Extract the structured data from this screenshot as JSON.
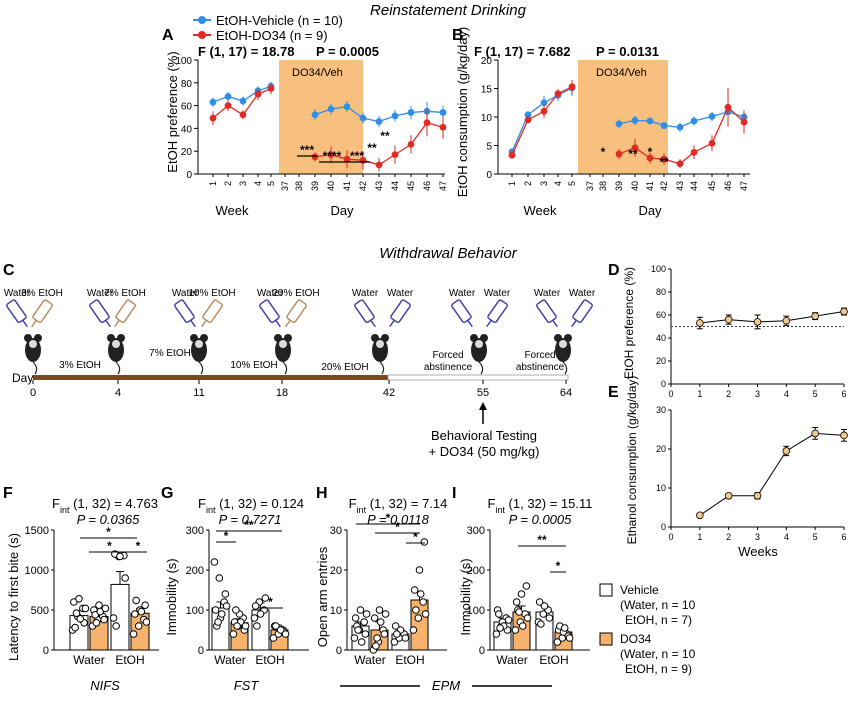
{
  "colors": {
    "vehicle": "#2f8fe8",
    "do34": "#e22a25",
    "shade": "#f8c07f",
    "brown": "#7a4a1e",
    "orange_bar": "#f7b26b",
    "pointD": "#f2c98a",
    "water_bottle": "#3a3aa8",
    "etoh_bottle": "#b8885a"
  },
  "titles": {
    "reinstatement": "Reinstatement Drinking",
    "withdrawal": "Withdrawal Behavior"
  },
  "panel_letters": {
    "a": "A",
    "b": "B",
    "c": "C",
    "d": "D",
    "e": "E",
    "f": "F",
    "g": "G",
    "h": "H",
    "i": "I"
  },
  "legend_top": {
    "vehicle": "EtOH-Vehicle (n = 10)",
    "do34": "EtOH-DO34 (n = 9)"
  },
  "panelA": {
    "stat": "F (1, 17) = 18.78",
    "p": "P = 0.0005",
    "shade_label": "DO34/Veh",
    "ylabel": "EtOH preference (%)",
    "xlabel_week": "Week",
    "xlabel_day": "Day",
    "yticks": [
      "0",
      "20",
      "40",
      "60",
      "80",
      "100"
    ],
    "sig": [
      {
        "label": "***"
      },
      {
        "label": "****"
      },
      {
        "label": "***"
      },
      {
        "label": "**"
      },
      {
        "label": "**"
      }
    ]
  },
  "panelB": {
    "stat": "F (1, 17) = 7.682",
    "p": "P = 0.0131",
    "shade_label": "DO34/Veh",
    "ylabel": "EtOH consumption (g/kg/day)",
    "xlabel_week": "Week",
    "xlabel_day": "Day",
    "yticks": [
      "0",
      "5",
      "10",
      "15",
      "20"
    ],
    "sig": [
      {
        "label": "*"
      },
      {
        "label": "**"
      },
      {
        "label": "*"
      },
      {
        "label": "**"
      }
    ]
  },
  "panelC": {
    "bottle_labels": [
      "Water",
      "3% EtOH",
      "Water",
      "7% EtOH",
      "Water",
      "10% EtOH",
      "Water",
      "20% EtOH",
      "Water",
      "Water",
      "Water",
      "Water",
      "Water",
      "Water"
    ],
    "phase_labels": [
      "3% EtOH",
      "7% EtOH",
      "10% EtOH",
      "20% EtOH",
      "Forced abstinence",
      "Forced abstinence"
    ],
    "day_label": "Day",
    "days": [
      "0",
      "4",
      "11",
      "18",
      "42",
      "55",
      "64"
    ],
    "testing": "Behavioral Testing",
    "drug": "+ DO34  (50 mg/kg)"
  },
  "panelD": {
    "ylabel": "EtOH preference (%)",
    "yticks": [
      "0",
      "20",
      "40",
      "60",
      "80",
      "100"
    ],
    "xticks": [
      "0",
      "1",
      "2",
      "3",
      "4",
      "5",
      "6"
    ]
  },
  "panelE": {
    "ylabel": "Ethanol consumption (g/kg/day)",
    "yticks": [
      "0",
      "10",
      "20",
      "30"
    ],
    "xticks": [
      "0",
      "1",
      "2",
      "3",
      "4",
      "5",
      "6"
    ],
    "xlabel": "Weeks"
  },
  "panelF": {
    "stat_main": "F",
    "stat_sub": "int",
    "stat_rest": " (1, 32) = 4.763",
    "p": "P = 0.0365",
    "ylabel": "Latency to first bite (s)",
    "yticks": [
      "0",
      "500",
      "1000",
      "1500"
    ],
    "groups": [
      "Water",
      "EtOH"
    ],
    "bottom": "NIFS"
  },
  "panelG": {
    "stat_main": "F",
    "stat_sub": "int",
    "stat_rest": " (1, 32) = 0.124",
    "p": "P = 0.7271",
    "ylabel": "Immobility (s)",
    "yticks": [
      "0",
      "100",
      "200",
      "300"
    ],
    "groups": [
      "Water",
      "EtOH"
    ],
    "bottom": "FST"
  },
  "panelH": {
    "stat_main": "F",
    "stat_sub": "int",
    "stat_rest": " (1, 32) = 7.14",
    "p": "P = 0.0118",
    "ylabel": "Open arm entries",
    "yticks": [
      "0",
      "10",
      "20",
      "30"
    ],
    "groups": [
      "Water",
      "EtOH"
    ],
    "bottom": "EPM"
  },
  "panelI": {
    "stat_main": "F",
    "stat_sub": "int",
    "stat_rest": " (1, 32) = 15.11",
    "p": "P = 0.0005",
    "ylabel": "Immobility (s)",
    "yticks": [
      "0",
      "100",
      "200",
      "300"
    ],
    "groups": [
      "Water",
      "EtOH"
    ]
  },
  "legend_bottom": {
    "vehicle": "Vehicle",
    "vehicle_l1": "(Water, n = 10",
    "vehicle_l2": "EtOH, n = 7)",
    "do34": "DO34",
    "do34_l1": "(Water, n = 10",
    "do34_l2": "EtOH, n = 9)"
  },
  "chart_data": [
    {
      "panel": "A",
      "type": "line",
      "title": "Reinstatement Drinking",
      "x": [
        "1",
        "2",
        "3",
        "4",
        "5",
        "37",
        "38",
        "39",
        "40",
        "41",
        "42",
        "43",
        "44",
        "45",
        "46",
        "47"
      ],
      "ylabel": "EtOH preference (%)",
      "ylim": [
        0,
        100
      ],
      "series": [
        {
          "name": "EtOH-Vehicle (n = 10)",
          "values": [
            63,
            68,
            64,
            73,
            77,
            null,
            null,
            52,
            57,
            59,
            49,
            46,
            51,
            54,
            55,
            54
          ]
        },
        {
          "name": "EtOH-DO34 (n = 9)",
          "values": [
            49,
            60,
            52,
            70,
            75,
            null,
            null,
            15,
            17,
            13,
            12,
            8,
            17,
            26,
            45,
            41
          ]
        }
      ]
    },
    {
      "panel": "B",
      "type": "line",
      "x": [
        "1",
        "2",
        "3",
        "4",
        "5",
        "37",
        "38",
        "39",
        "40",
        "41",
        "42",
        "43",
        "44",
        "45",
        "46",
        "47"
      ],
      "ylabel": "EtOH consumption (g/kg/day)",
      "ylim": [
        0,
        20
      ],
      "series": [
        {
          "name": "EtOH-Vehicle (n = 10)",
          "values": [
            3.9,
            10.4,
            12.5,
            13.8,
            15.1,
            null,
            null,
            8.8,
            9.4,
            9.3,
            8.5,
            8.2,
            9.3,
            10.1,
            10.9,
            10.0
          ]
        },
        {
          "name": "EtOH-DO34 (n = 9)",
          "values": [
            3.3,
            9.5,
            11.0,
            14.1,
            15.3,
            null,
            null,
            3.5,
            4.6,
            2.8,
            2.6,
            1.8,
            3.8,
            5.4,
            11.7,
            9.1
          ]
        }
      ]
    },
    {
      "panel": "D",
      "type": "line",
      "x": [
        1,
        2,
        3,
        4,
        5,
        6
      ],
      "ylabel": "EtOH preference (%)",
      "ylim": [
        0,
        100
      ],
      "reference_line": 50,
      "series": [
        {
          "values": [
            53,
            56,
            54,
            55,
            59,
            63
          ]
        }
      ]
    },
    {
      "panel": "E",
      "type": "line",
      "x": [
        1,
        2,
        3,
        4,
        5,
        6
      ],
      "xlabel": "Weeks",
      "ylabel": "Ethanol consumption (g/kg/day)",
      "ylim": [
        0,
        30
      ],
      "series": [
        {
          "values": [
            3,
            8,
            8,
            19.5,
            24,
            23.5
          ]
        }
      ]
    },
    {
      "panel": "F",
      "type": "bar",
      "categories": [
        "Water",
        "EtOH"
      ],
      "ylabel": "Latency to first bite (s)",
      "ylim": [
        0,
        1500
      ],
      "series": [
        {
          "name": "Vehicle",
          "values": [
            430,
            820
          ]
        },
        {
          "name": "DO34",
          "values": [
            420,
            460
          ]
        }
      ]
    },
    {
      "panel": "G",
      "type": "bar",
      "categories": [
        "Water",
        "EtOH"
      ],
      "ylabel": "Immobility (s)",
      "ylim": [
        0,
        300
      ],
      "series": [
        {
          "name": "Vehicle",
          "values": [
            105,
            100
          ]
        },
        {
          "name": "DO34",
          "values": [
            68,
            50
          ]
        }
      ]
    },
    {
      "panel": "H",
      "type": "bar",
      "categories": [
        "Water",
        "EtOH"
      ],
      "ylabel": "Open arm entries",
      "ylim": [
        0,
        30
      ],
      "series": [
        {
          "name": "Vehicle",
          "values": [
            6,
            4
          ]
        },
        {
          "name": "DO34",
          "values": [
            5,
            12.5
          ]
        }
      ]
    },
    {
      "panel": "I",
      "type": "bar",
      "categories": [
        "Water",
        "EtOH"
      ],
      "ylabel": "Immobility (s)",
      "ylim": [
        0,
        300
      ],
      "series": [
        {
          "name": "Vehicle",
          "values": [
            70,
            95
          ]
        },
        {
          "name": "DO34",
          "values": [
            95,
            45
          ]
        }
      ]
    }
  ]
}
